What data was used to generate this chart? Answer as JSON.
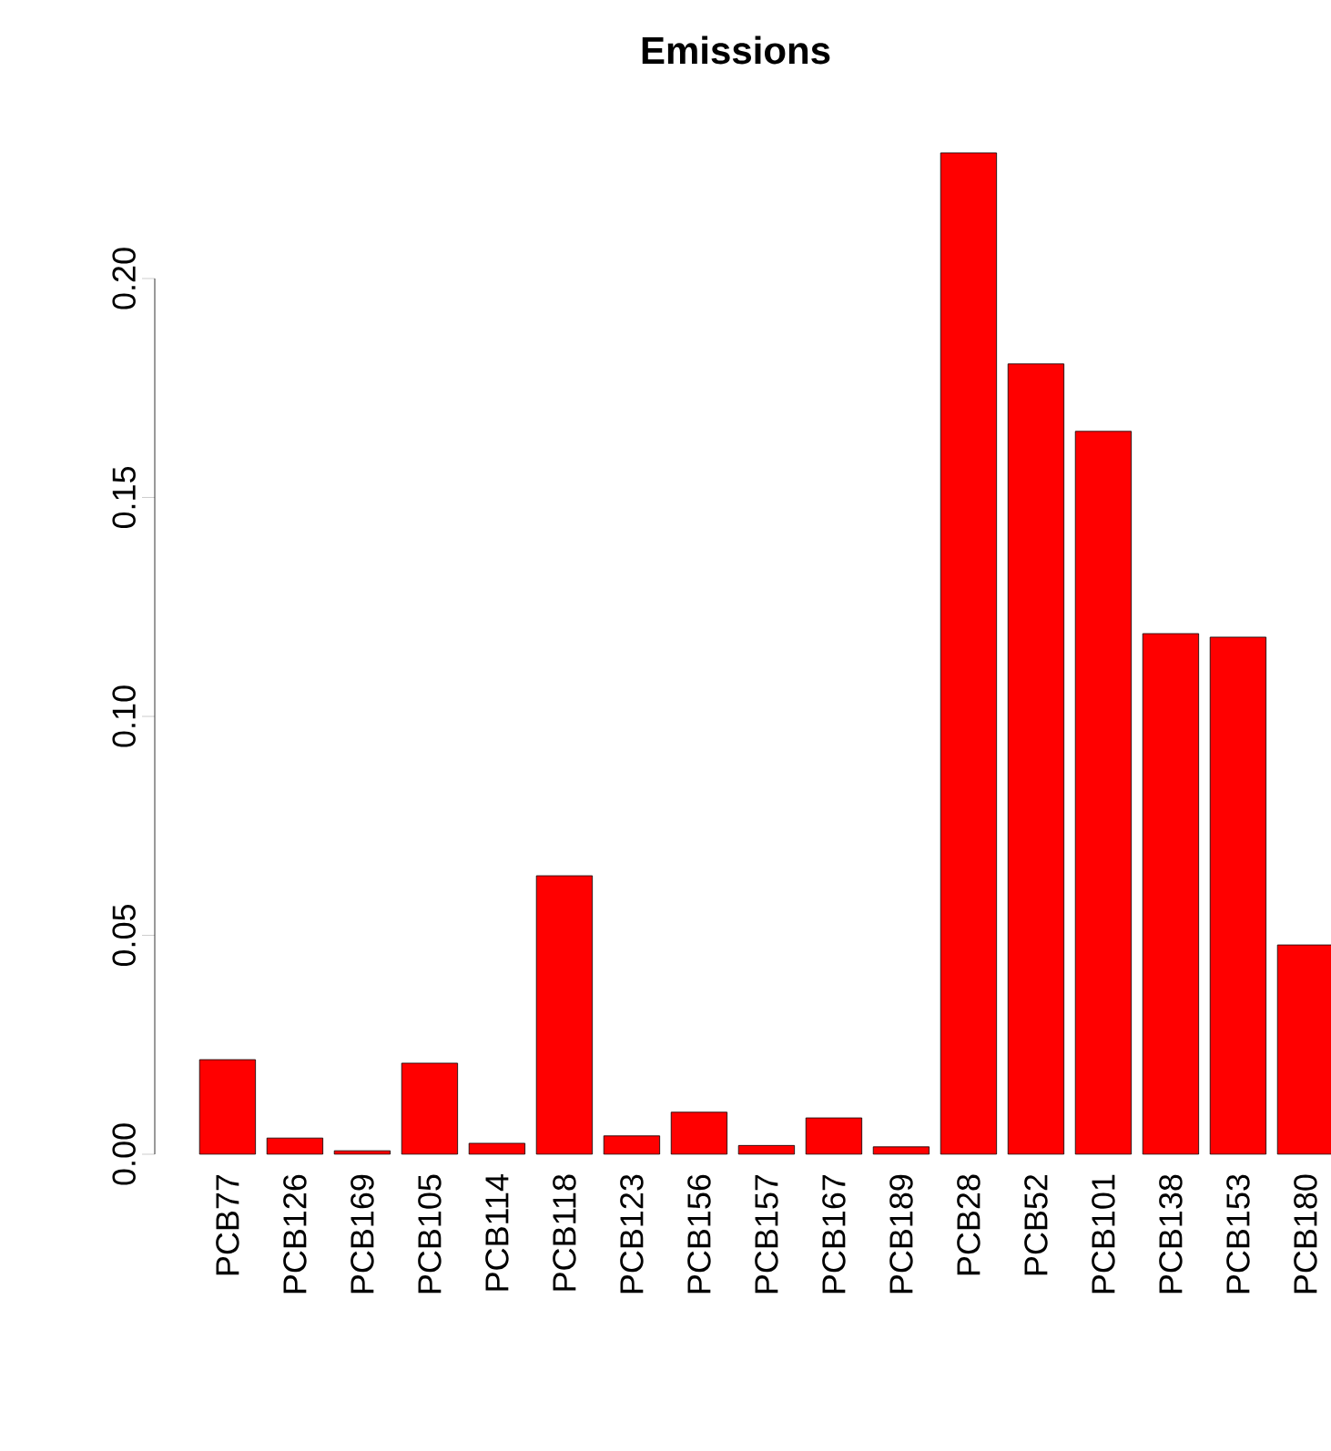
{
  "chart_data": {
    "type": "bar",
    "title": "Emissions",
    "categories": [
      "PCB77",
      "PCB126",
      "PCB169",
      "PCB105",
      "PCB114",
      "PCB118",
      "PCB123",
      "PCB156",
      "PCB157",
      "PCB167",
      "PCB189",
      "PCB28",
      "PCB52",
      "PCB101",
      "PCB138",
      "PCB153",
      "PCB180"
    ],
    "values": [
      0.0216,
      0.0037,
      0.0008,
      0.0208,
      0.0025,
      0.0636,
      0.0042,
      0.0096,
      0.002,
      0.0083,
      0.0017,
      0.2287,
      0.1805,
      0.1651,
      0.1189,
      0.1181,
      0.0478
    ],
    "color": "#ff0000",
    "ylim": [
      0,
      0.23
    ],
    "yticks": [
      {
        "value": 0,
        "label": "0.00"
      },
      {
        "value": 0.05,
        "label": "0.05"
      },
      {
        "value": 0.1,
        "label": "0.10"
      },
      {
        "value": 0.15,
        "label": "0.15"
      },
      {
        "value": 0.2,
        "label": "0.20"
      }
    ],
    "grid": false
  }
}
